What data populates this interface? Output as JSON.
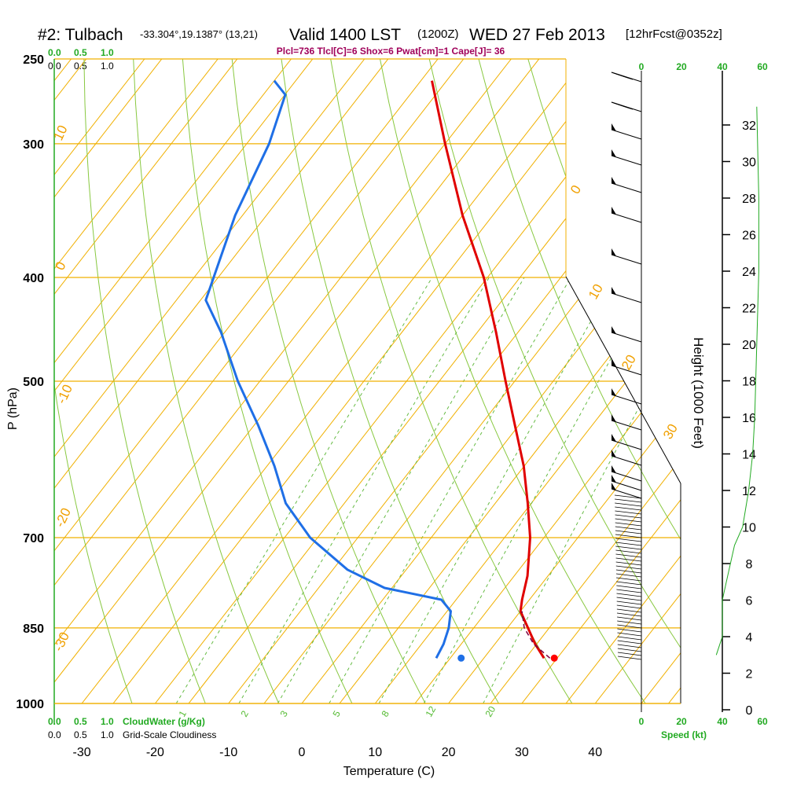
{
  "title": {
    "station": "#2: Tulbach",
    "coords": "-33.304°,19.1387° (13,21)",
    "valid": "Valid 1400 LST",
    "zulu": "(1200Z)",
    "date": "WED 27 Feb 2013",
    "forecast": "[12hrFcst@0352z]"
  },
  "params_line": "Plcl=736 Tlcl[C]=6 Shox=6 Pwat[cm]=1 Cape[J]= 36",
  "cloud_scales": {
    "top_green": [
      "0.0",
      "0.5",
      "1.0"
    ],
    "top_black": [
      "0.0",
      "0.5",
      "1.0"
    ],
    "bottom_green": [
      "0.0",
      "0.5",
      "1.0"
    ],
    "bottom_black": [
      "0.0",
      "0.5",
      "1.0"
    ],
    "cloudwater_label": "CloudWater (g/Kg)",
    "cloudiness_label": "Grid-Scale Cloudiness"
  },
  "speed_scale": {
    "top": [
      "0",
      "20",
      "40",
      "60"
    ],
    "bottom": [
      "0",
      "20",
      "40",
      "60"
    ],
    "label": "Speed (kt)"
  },
  "colors": {
    "temperature": "#e00000",
    "dewpoint": "#1f6fe6",
    "parcel": "#7a0040",
    "isobar_isotherm": "#f0b000",
    "dry_adiabat": "#88c840",
    "mixing_ratio": "#66bb44",
    "speed": "#22aa22"
  },
  "chart_data": {
    "type": "line",
    "subtype": "skew-t log-p sounding",
    "xlabel": "Temperature (C)",
    "ylabel": "P (hPa)",
    "ylabel_right": "Height (1000 Feet)",
    "pressure_ticks": [
      250,
      300,
      400,
      500,
      700,
      850,
      1000
    ],
    "temperature_ticks": [
      -30,
      -20,
      -10,
      0,
      10,
      20,
      30,
      40
    ],
    "height_ticks": [
      0,
      2,
      4,
      6,
      8,
      10,
      12,
      14,
      16,
      18,
      20,
      22,
      24,
      26,
      28,
      30,
      32
    ],
    "isotherm_labels": [
      "10",
      "0",
      "-10",
      "-20",
      "-30",
      "0",
      "10",
      "20",
      "30"
    ],
    "mixing_ratio_labels": [
      "1",
      "2",
      "3",
      "5",
      "8",
      "12",
      "20"
    ],
    "series": [
      {
        "name": "Temperature",
        "points": [
          {
            "p": 907,
            "t": 28.2
          },
          {
            "p": 880,
            "t": 25.5
          },
          {
            "p": 850,
            "t": 22.8
          },
          {
            "p": 820,
            "t": 20.0
          },
          {
            "p": 800,
            "t": 19.0
          },
          {
            "p": 760,
            "t": 17.2
          },
          {
            "p": 700,
            "t": 13.5
          },
          {
            "p": 650,
            "t": 9.5
          },
          {
            "p": 600,
            "t": 5.0
          },
          {
            "p": 550,
            "t": -0.5
          },
          {
            "p": 500,
            "t": -6.5
          },
          {
            "p": 450,
            "t": -13.0
          },
          {
            "p": 400,
            "t": -20.5
          },
          {
            "p": 350,
            "t": -30.0
          },
          {
            "p": 300,
            "t": -40.0
          },
          {
            "p": 262,
            "t": -48.5
          }
        ]
      },
      {
        "name": "Dewpoint",
        "points": [
          {
            "p": 907,
            "t": 13.5
          },
          {
            "p": 880,
            "t": 13.0
          },
          {
            "p": 850,
            "t": 12.0
          },
          {
            "p": 820,
            "t": 10.5
          },
          {
            "p": 800,
            "t": 8.0
          },
          {
            "p": 780,
            "t": -1.0
          },
          {
            "p": 750,
            "t": -8.0
          },
          {
            "p": 700,
            "t": -16.5
          },
          {
            "p": 650,
            "t": -23.5
          },
          {
            "p": 600,
            "t": -29.0
          },
          {
            "p": 550,
            "t": -35.5
          },
          {
            "p": 500,
            "t": -43.0
          },
          {
            "p": 450,
            "t": -50.5
          },
          {
            "p": 420,
            "t": -56.0
          },
          {
            "p": 350,
            "t": -61.0
          },
          {
            "p": 300,
            "t": -64.0
          },
          {
            "p": 270,
            "t": -67.0
          },
          {
            "p": 262,
            "t": -70.0
          }
        ]
      }
    ],
    "parcel": [
      {
        "p": 907,
        "t": 29.0
      },
      {
        "p": 880,
        "t": 25.3
      },
      {
        "p": 850,
        "t": 22.3
      },
      {
        "p": 820,
        "t": 20.2
      }
    ],
    "surface_markers": {
      "temperature": 29.6,
      "dewpoint": 16.9,
      "pressure": 907
    },
    "speed_profile_kt": [
      {
        "h": 3,
        "s": 37
      },
      {
        "h": 4,
        "s": 40
      },
      {
        "h": 6,
        "s": 40
      },
      {
        "h": 7,
        "s": 42
      },
      {
        "h": 9,
        "s": 46
      },
      {
        "h": 10,
        "s": 50
      },
      {
        "h": 12,
        "s": 53
      },
      {
        "h": 14,
        "s": 55
      },
      {
        "h": 16,
        "s": 56
      },
      {
        "h": 20,
        "s": 57
      },
      {
        "h": 24,
        "s": 58
      },
      {
        "h": 28,
        "s": 58
      },
      {
        "h": 33,
        "s": 57
      }
    ]
  }
}
